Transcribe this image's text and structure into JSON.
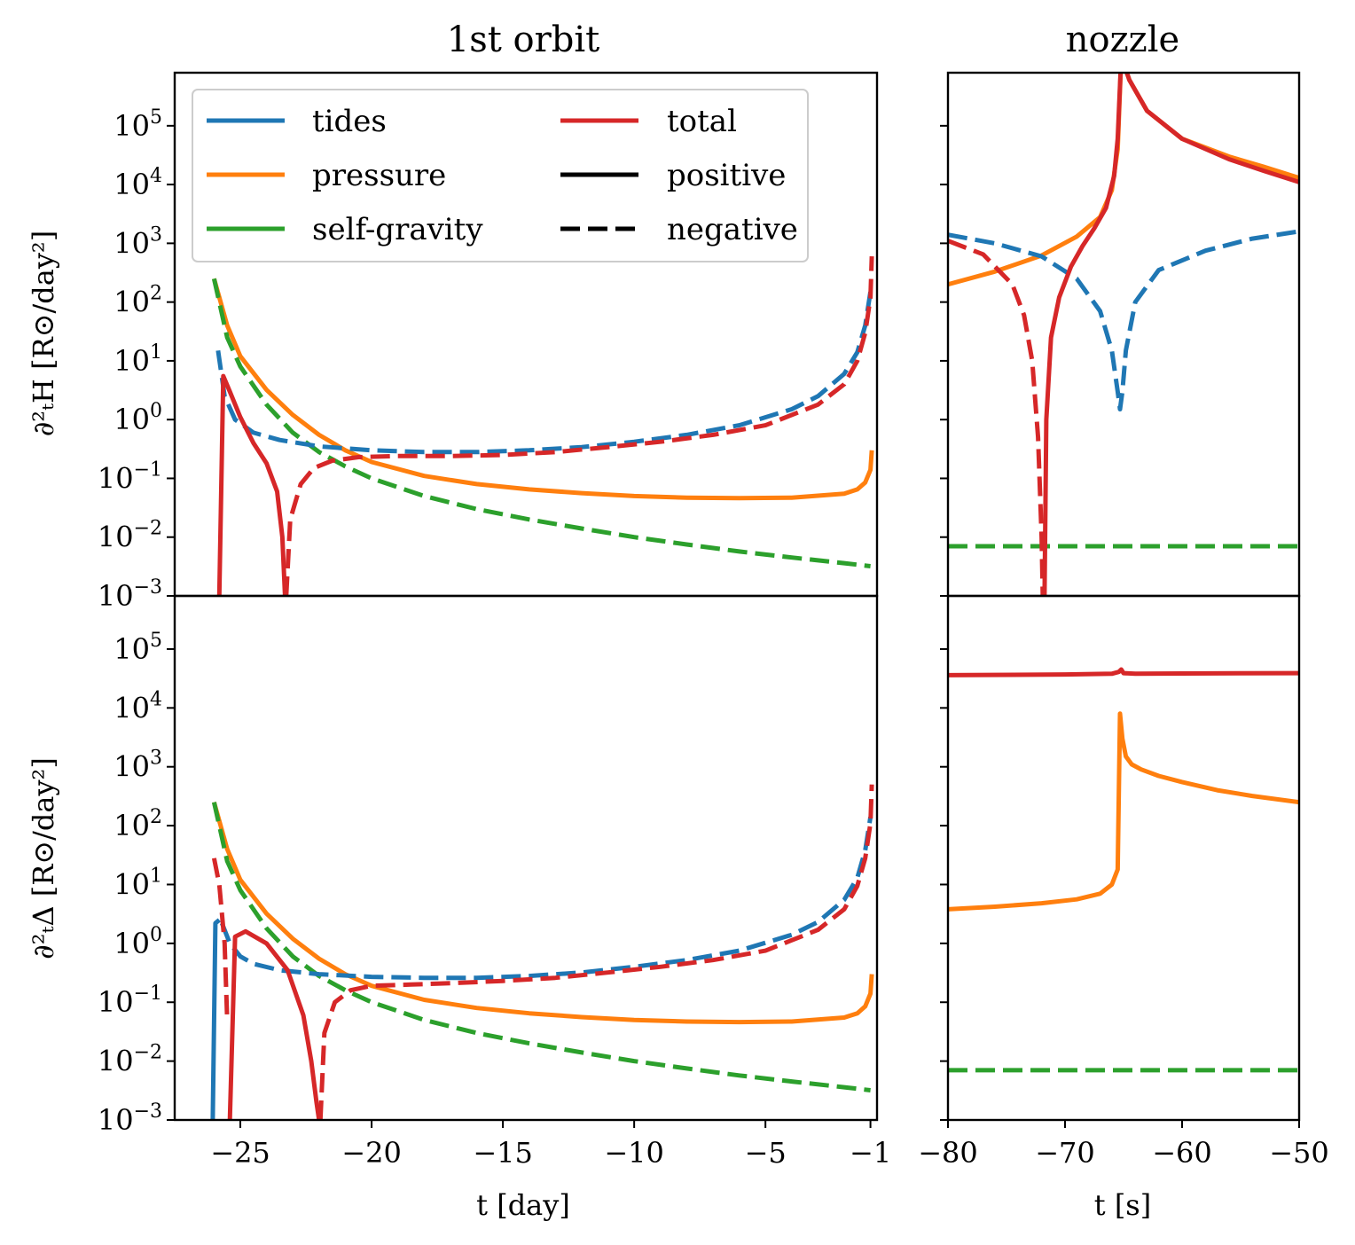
{
  "chart_data": [
    {
      "type": "line",
      "panel": "top-left",
      "title": "1st orbit",
      "xlabel": "",
      "ylabel": "∂²ₜH [R⊙/day²]",
      "xlim": [
        -27.5,
        -0.75
      ],
      "yscale": "log",
      "ylim": [
        0.001,
        800000
      ],
      "series": [
        {
          "name": "pressure",
          "style": "positive",
          "color": "#ff7f0e",
          "x": [
            -26,
            -25.5,
            -25,
            -24,
            -23,
            -22,
            -21,
            -20,
            -18,
            -16,
            -14,
            -12,
            -10,
            -8,
            -6,
            -4,
            -2,
            -1.5,
            -1.2,
            -1.0,
            -0.95
          ],
          "y": [
            250,
            40,
            12,
            3.2,
            1.2,
            0.55,
            0.3,
            0.19,
            0.11,
            0.08,
            0.065,
            0.056,
            0.05,
            0.047,
            0.046,
            0.047,
            0.055,
            0.065,
            0.085,
            0.14,
            0.3
          ]
        },
        {
          "name": "self-gravity",
          "style": "negative",
          "color": "#2ca02c",
          "x": [
            -26,
            -25.5,
            -25,
            -24,
            -23,
            -22,
            -21,
            -20,
            -18,
            -16,
            -14,
            -12,
            -10,
            -8,
            -6,
            -4,
            -2,
            -1.0
          ],
          "y": [
            250,
            25,
            8,
            1.8,
            0.6,
            0.28,
            0.16,
            0.1,
            0.05,
            0.03,
            0.02,
            0.014,
            0.01,
            0.0075,
            0.0057,
            0.0045,
            0.0036,
            0.0032
          ]
        },
        {
          "name": "tides",
          "style": "negative",
          "color": "#1f77b4",
          "x": [
            -25.85,
            -25.6,
            -25.2,
            -24.5,
            -23.5,
            -22,
            -20,
            -18,
            -16,
            -14,
            -12,
            -10,
            -8,
            -6,
            -4,
            -3,
            -2,
            -1.5,
            -1.2,
            -1.0
          ],
          "y": [
            15,
            2.5,
            1.0,
            0.6,
            0.45,
            0.35,
            0.3,
            0.28,
            0.28,
            0.3,
            0.34,
            0.42,
            0.55,
            0.8,
            1.5,
            2.5,
            6,
            14,
            40,
            150
          ]
        },
        {
          "name": "total",
          "style": "positive",
          "color": "#d62728",
          "x": [
            -25.8,
            -25.65,
            -25.4,
            -25.0,
            -24.5,
            -24.0,
            -23.6,
            -23.4,
            -23.3
          ],
          "y": [
            0.001,
            5.5,
            3.0,
            1.1,
            0.4,
            0.18,
            0.06,
            0.01,
            0.001
          ]
        },
        {
          "name": "total",
          "style": "negative",
          "color": "#d62728",
          "x": [
            -23.25,
            -23.1,
            -22.7,
            -22.2,
            -21.5,
            -20.5,
            -19,
            -17,
            -15,
            -13,
            -11,
            -9,
            -7,
            -5,
            -3,
            -2,
            -1.5,
            -1.2,
            -1.0,
            -0.95
          ],
          "y": [
            0.001,
            0.02,
            0.08,
            0.15,
            0.2,
            0.23,
            0.24,
            0.24,
            0.25,
            0.28,
            0.34,
            0.42,
            0.55,
            0.8,
            1.8,
            4,
            10,
            30,
            120,
            600
          ]
        }
      ]
    },
    {
      "type": "line",
      "panel": "top-right",
      "title": "nozzle",
      "xlabel": "",
      "ylabel": "",
      "xlim": [
        -80,
        -50
      ],
      "yscale": "log",
      "ylim": [
        0.001,
        800000
      ],
      "series": [
        {
          "name": "pressure",
          "style": "positive",
          "color": "#ff7f0e",
          "x": [
            -80,
            -76,
            -72,
            -69,
            -67,
            -66,
            -65.5,
            -65.2,
            -64.5,
            -63,
            -60,
            -56,
            -53,
            -50
          ],
          "y": [
            200,
            330,
            620,
            1300,
            2800,
            8000,
            40000,
            1500000,
            600000,
            180000,
            60000,
            30000,
            20000,
            13000
          ]
        },
        {
          "name": "tides",
          "style": "negative",
          "color": "#1f77b4",
          "x": [
            -80,
            -76,
            -72,
            -69,
            -67,
            -66,
            -65.5,
            -65.3,
            -65.1,
            -64.8,
            -64,
            -62,
            -58,
            -54,
            -50
          ],
          "y": [
            1400,
            1000,
            600,
            250,
            70,
            15,
            3,
            1.5,
            3,
            15,
            100,
            350,
            750,
            1200,
            1600
          ]
        },
        {
          "name": "self-gravity",
          "style": "negative",
          "color": "#2ca02c",
          "x": [
            -80,
            -50
          ],
          "y": [
            0.007,
            0.007
          ]
        },
        {
          "name": "total",
          "style": "negative",
          "color": "#d62728",
          "x": [
            -80,
            -77,
            -74.5,
            -73.5,
            -72.8,
            -72.3,
            -72.0,
            -71.9
          ],
          "y": [
            1100,
            650,
            200,
            60,
            10,
            0.5,
            0.01,
            0.001
          ]
        },
        {
          "name": "total",
          "style": "positive",
          "color": "#d62728",
          "x": [
            -71.75,
            -71.6,
            -71.2,
            -70.5,
            -69.5,
            -68.5,
            -67.5,
            -66.5,
            -65.8,
            -65.5,
            -65.2,
            -64.5,
            -63,
            -60,
            -56,
            -53,
            -50
          ],
          "y": [
            0.001,
            1,
            25,
            120,
            400,
            900,
            1800,
            4000,
            14000,
            60000,
            1500000,
            600000,
            180000,
            60000,
            27000,
            17000,
            11000
          ]
        }
      ]
    },
    {
      "type": "line",
      "panel": "bottom-left",
      "title": "",
      "xlabel": "t [day]",
      "ylabel": "∂²ₜΔ [R⊙/day²]",
      "xlim": [
        -27.5,
        -0.75
      ],
      "yscale": "log",
      "ylim": [
        0.001,
        800000
      ],
      "xticks": [
        -25,
        -20,
        -15,
        -10,
        -5,
        -1
      ],
      "series": [
        {
          "name": "pressure",
          "style": "positive",
          "color": "#ff7f0e",
          "x": [
            -26,
            -25.5,
            -25,
            -24,
            -23,
            -22,
            -21,
            -20,
            -18,
            -16,
            -14,
            -12,
            -10,
            -8,
            -6,
            -4,
            -2,
            -1.5,
            -1.2,
            -1.0,
            -0.95
          ],
          "y": [
            250,
            40,
            12,
            3.2,
            1.2,
            0.55,
            0.3,
            0.19,
            0.11,
            0.08,
            0.065,
            0.056,
            0.05,
            0.047,
            0.046,
            0.047,
            0.055,
            0.065,
            0.085,
            0.14,
            0.3
          ]
        },
        {
          "name": "self-gravity",
          "style": "negative",
          "color": "#2ca02c",
          "x": [
            -26,
            -25.5,
            -25,
            -24,
            -23,
            -22,
            -21,
            -20,
            -18,
            -16,
            -14,
            -12,
            -10,
            -8,
            -6,
            -4,
            -2,
            -1.0
          ],
          "y": [
            250,
            25,
            8,
            1.8,
            0.6,
            0.28,
            0.16,
            0.1,
            0.05,
            0.03,
            0.02,
            0.014,
            0.01,
            0.0075,
            0.0057,
            0.0045,
            0.0036,
            0.0032
          ]
        },
        {
          "name": "tides",
          "style": "positive",
          "color": "#1f77b4",
          "x": [
            -26.05,
            -25.95,
            -25.8
          ],
          "y": [
            0.001,
            2.2,
            2.5
          ]
        },
        {
          "name": "tides",
          "style": "negative",
          "color": "#1f77b4",
          "x": [
            -25.7,
            -25.4,
            -25.0,
            -24.5,
            -23.5,
            -22,
            -20,
            -18,
            -16,
            -14,
            -12,
            -10,
            -8,
            -6,
            -4,
            -3,
            -2,
            -1.5,
            -1.2,
            -1.0
          ],
          "y": [
            2.2,
            1.0,
            0.6,
            0.45,
            0.35,
            0.3,
            0.27,
            0.26,
            0.26,
            0.28,
            0.32,
            0.4,
            0.52,
            0.75,
            1.4,
            2.3,
            5.5,
            13,
            38,
            140
          ]
        },
        {
          "name": "total",
          "style": "negative",
          "color": "#d62728",
          "x": [
            -26,
            -25.8,
            -25.6,
            -25.5
          ],
          "y": [
            28,
            10,
            1.0,
            0.05
          ]
        },
        {
          "name": "total",
          "style": "positive",
          "color": "#d62728",
          "x": [
            -25.4,
            -25.2,
            -24.8,
            -24.0,
            -23.2,
            -22.6,
            -22.3,
            -22.1,
            -22.0
          ],
          "y": [
            0.001,
            1.3,
            1.6,
            1.0,
            0.35,
            0.06,
            0.01,
            0.002,
            0.001
          ]
        },
        {
          "name": "total",
          "style": "negative",
          "color": "#d62728",
          "x": [
            -21.95,
            -21.8,
            -21.4,
            -20.8,
            -20,
            -18.5,
            -17,
            -15,
            -13,
            -11,
            -9,
            -7,
            -5,
            -3,
            -2,
            -1.5,
            -1.2,
            -1.0,
            -0.95
          ],
          "y": [
            0.001,
            0.03,
            0.1,
            0.16,
            0.19,
            0.2,
            0.21,
            0.23,
            0.26,
            0.32,
            0.4,
            0.52,
            0.75,
            1.7,
            3.8,
            9.5,
            28,
            110,
            500
          ]
        }
      ]
    },
    {
      "type": "line",
      "panel": "bottom-right",
      "title": "",
      "xlabel": "t [s]",
      "ylabel": "",
      "xlim": [
        -80,
        -50
      ],
      "yscale": "log",
      "ylim": [
        0.001,
        800000
      ],
      "xticks": [
        -80,
        -70,
        -60,
        -50
      ],
      "series": [
        {
          "name": "total",
          "style": "positive",
          "color": "#d62728",
          "x": [
            -80,
            -70,
            -66,
            -65.4,
            -65.2,
            -65.0,
            -64,
            -60,
            -50
          ],
          "y": [
            36000,
            37000,
            38000,
            41000,
            45000,
            39000,
            38000,
            38500,
            39000
          ]
        },
        {
          "name": "pressure",
          "style": "positive",
          "color": "#ff7f0e",
          "x": [
            -80,
            -76,
            -72,
            -69,
            -67,
            -66,
            -65.5,
            -65.3,
            -65.1,
            -64.8,
            -64.3,
            -63.5,
            -62,
            -60,
            -57,
            -54,
            -50
          ],
          "y": [
            3.8,
            4.2,
            4.8,
            5.6,
            7,
            10,
            18,
            8000,
            3000,
            1500,
            1100,
            900,
            700,
            550,
            400,
            320,
            250
          ]
        },
        {
          "name": "self-gravity",
          "style": "negative",
          "color": "#2ca02c",
          "x": [
            -80,
            -50
          ],
          "y": [
            0.007,
            0.007
          ]
        }
      ]
    }
  ],
  "legend": {
    "entries": [
      {
        "label": "tides",
        "color": "#1f77b4",
        "dash": false
      },
      {
        "label": "pressure",
        "color": "#ff7f0e",
        "dash": false
      },
      {
        "label": "self-gravity",
        "color": "#2ca02c",
        "dash": false
      },
      {
        "label": "total",
        "color": "#d62728",
        "dash": false
      },
      {
        "label": "positive",
        "color": "#000000",
        "dash": false
      },
      {
        "label": "negative",
        "color": "#000000",
        "dash": true
      }
    ],
    "placement": "upper-left of top-left panel"
  },
  "yticks": [
    {
      "base": "10",
      "exp": "5"
    },
    {
      "base": "10",
      "exp": "4"
    },
    {
      "base": "10",
      "exp": "3"
    },
    {
      "base": "10",
      "exp": "2"
    },
    {
      "base": "10",
      "exp": "1"
    },
    {
      "base": "10",
      "exp": "0"
    },
    {
      "base": "10",
      "exp": "−1"
    },
    {
      "base": "10",
      "exp": "−2"
    },
    {
      "base": "10",
      "exp": "−3"
    }
  ],
  "xtick_labels_left": [
    "−25",
    "−20",
    "−15",
    "−10",
    "−5",
    "−1"
  ],
  "xtick_labels_right": [
    "−80",
    "−70",
    "−60",
    "−50"
  ],
  "titles": {
    "left": "1st orbit",
    "right": "nozzle"
  },
  "axis_labels": {
    "ylabel_top": "∂²ₜH [R⊙/day²]",
    "ylabel_bottom": "∂²ₜΔ [R⊙/day²]",
    "xlabel_left": "t [day]",
    "xlabel_right": "t [s]"
  }
}
